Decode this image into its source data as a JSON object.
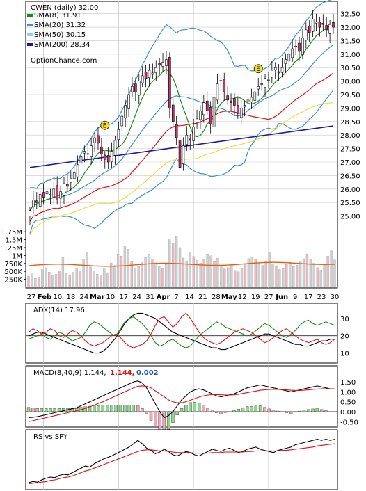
{
  "chart_data": [
    {
      "type": "candlestick",
      "title": "CWEN (daily) 32.00",
      "watermark": "OptionChance.com",
      "ylim": [
        24.5,
        32.8
      ],
      "yticks": [
        "32.50",
        "32.00",
        "31.50",
        "31.00",
        "30.50",
        "30.00",
        "29.50",
        "29.00",
        "28.50",
        "28.00",
        "27.50",
        "27.00",
        "26.50",
        "26.00",
        "25.50",
        "25.00"
      ],
      "legend": [
        {
          "label": "SMA(8) 31.91",
          "color": "#1a8a1a"
        },
        {
          "label": "SMA(20) 31.32",
          "color": "#3a8fd0"
        },
        {
          "label": "SMA(50) 30.15",
          "color": "#8fd0f0"
        },
        {
          "label": "SMA(200) 28.34",
          "color": "#1a1aa0"
        }
      ],
      "close": [
        25.2,
        25.6,
        25.5,
        25.8,
        25.7,
        25.9,
        25.8,
        26.0,
        25.6,
        25.9,
        26.2,
        26.1,
        26.4,
        26.6,
        26.9,
        27.2,
        27.4,
        27.3,
        27.6,
        27.9,
        27.7,
        27.3,
        27.1,
        27.0,
        27.4,
        27.8,
        28.2,
        28.7,
        29.1,
        29.5,
        29.8,
        29.6,
        30.0,
        30.2,
        30.1,
        30.4,
        30.3,
        30.5,
        30.6,
        30.7,
        30.8,
        29.0,
        28.5,
        27.9,
        26.8,
        27.6,
        28.0,
        27.8,
        28.3,
        28.6,
        28.9,
        29.2,
        28.9,
        28.4,
        29.4,
        29.9,
        30.0,
        29.6,
        29.3,
        29.2,
        29.1,
        28.8,
        29.0,
        29.1,
        29.3,
        29.4,
        29.6,
        29.8,
        29.9,
        30.1,
        30.0,
        30.4,
        30.5,
        30.3,
        30.5,
        30.8,
        31.0,
        31.2,
        31.3,
        31.1,
        31.6,
        31.9,
        31.8,
        32.3,
        32.2,
        32.0,
        32.1,
        31.9,
        32.1,
        32.0
      ],
      "sma_labels": [
        "SMA(8)",
        "SMA(20)",
        "SMA(50)",
        "SMA(200)"
      ],
      "sma200": {
        "from": 26.8,
        "to": 28.34
      },
      "signal_markers": [
        {
          "label": "E",
          "index": 22,
          "price": 28.0
        },
        {
          "label": "E",
          "index": 67,
          "price": 30.1
        }
      ]
    },
    {
      "type": "bar",
      "title": "Volume",
      "yticks": [
        "1.75M",
        "1.5M",
        "1.25M",
        "1M",
        "750K",
        "500K",
        "250K"
      ],
      "ylim": [
        0,
        1950000
      ],
      "values": [
        350000,
        420000,
        280000,
        310000,
        560000,
        620000,
        480000,
        390000,
        410000,
        520000,
        950000,
        430000,
        380000,
        470000,
        610000,
        520000,
        880000,
        1100000,
        640000,
        520000,
        410000,
        360000,
        580000,
        460000,
        760000,
        690000,
        1050000,
        980000,
        1300000,
        1200000,
        820000,
        610000,
        660000,
        780000,
        940000,
        1050000,
        880000,
        770000,
        650000,
        610000,
        720000,
        1500000,
        1400000,
        1600000,
        1250000,
        920000,
        830000,
        1100000,
        970000,
        850000,
        760000,
        880000,
        1050000,
        990000,
        810000,
        920000,
        700000,
        580000,
        620000,
        710000,
        530000,
        490000,
        610000,
        720000,
        900000,
        950000,
        880000,
        760000,
        690000,
        820000,
        1100000,
        740000,
        680000,
        560000,
        610000,
        720000,
        780000,
        650000,
        700000,
        820000,
        900000,
        1050000,
        880000,
        760000,
        620000,
        540000,
        700000,
        980000,
        1150000,
        860000
      ],
      "avg_line": {
        "from": 680000,
        "to": 760000
      },
      "x_ticks": [
        "27",
        "Feb",
        "10",
        "18",
        "24",
        "Mar",
        "10",
        "17",
        "24",
        "31",
        "Apr",
        "7",
        "14",
        "21",
        "28",
        "May",
        "12",
        "19",
        "27",
        "Jun",
        "9",
        "17",
        "23",
        "30"
      ]
    },
    {
      "type": "line",
      "title": "ADX(14) 17.96",
      "yticks": [
        "30",
        "20",
        "10"
      ],
      "ylim": [
        5,
        38
      ],
      "series": [
        {
          "name": "ADX",
          "color": "#000000",
          "values": [
            20,
            21,
            22,
            22,
            21,
            20,
            19,
            18,
            17,
            16,
            15,
            14,
            13,
            12,
            11,
            10,
            10,
            11,
            13,
            16,
            19,
            23,
            27,
            30,
            32,
            33,
            33,
            32,
            31,
            30,
            28,
            26,
            24,
            22,
            21,
            20,
            19,
            18,
            17,
            16,
            15,
            14,
            13,
            13,
            12,
            12,
            13,
            14,
            15,
            16,
            17,
            18,
            19,
            20,
            21,
            21,
            20,
            19,
            18,
            17,
            16,
            15,
            15,
            14,
            14,
            15,
            16,
            17,
            17,
            18,
            18
          ]
        },
        {
          "name": "+DI",
          "color": "#1a8a1a",
          "values": [
            18,
            19,
            20,
            21,
            19,
            18,
            20,
            22,
            21,
            19,
            17,
            18,
            19,
            22,
            26,
            28,
            27,
            25,
            23,
            21,
            20,
            24,
            28,
            30,
            31,
            29,
            27,
            24,
            20,
            16,
            14,
            15,
            17,
            18,
            16,
            14,
            13,
            14,
            17,
            20,
            22,
            24,
            26,
            28,
            27,
            25,
            24,
            23,
            22,
            21,
            20,
            21,
            23,
            25,
            27,
            26,
            24,
            22,
            20,
            19,
            21,
            23,
            26,
            28,
            29,
            27,
            26,
            27,
            28,
            27,
            26
          ]
        },
        {
          "name": "-DI",
          "color": "#e01010",
          "values": [
            22,
            24,
            23,
            21,
            22,
            24,
            23,
            20,
            19,
            21,
            23,
            22,
            20,
            17,
            15,
            14,
            15,
            16,
            18,
            20,
            21,
            19,
            16,
            14,
            13,
            14,
            15,
            17,
            21,
            26,
            30,
            31,
            28,
            25,
            27,
            31,
            33,
            30,
            26,
            22,
            19,
            17,
            16,
            15,
            16,
            18,
            20,
            22,
            23,
            24,
            23,
            22,
            20,
            18,
            16,
            17,
            19,
            21,
            23,
            24,
            22,
            20,
            18,
            17,
            16,
            17,
            18,
            16,
            15,
            16,
            18
          ]
        }
      ]
    },
    {
      "type": "line",
      "title": "MACD(8,40,9) 1.144,",
      "values_printed": [
        "1.144,",
        "0.002"
      ],
      "yticks": [
        "1.50",
        "1.00",
        "0.50",
        "0.00",
        "-0.50"
      ],
      "ylim": [
        -0.7,
        1.75
      ],
      "series": [
        {
          "name": "MACD",
          "color": "#000000",
          "values": [
            -0.3,
            -0.28,
            -0.25,
            -0.2,
            -0.15,
            -0.1,
            -0.05,
            0.0,
            0.05,
            0.1,
            0.15,
            0.2,
            0.3,
            0.4,
            0.5,
            0.6,
            0.7,
            0.8,
            0.9,
            1.0,
            1.1,
            1.2,
            1.3,
            1.4,
            1.5,
            1.55,
            1.45,
            1.2,
            0.8,
            0.4,
            0.0,
            -0.3,
            -0.2,
            0.0,
            0.3,
            0.6,
            0.8,
            1.0,
            1.1,
            1.15,
            1.1,
            1.0,
            0.9,
            0.8,
            0.75,
            0.8,
            0.85,
            0.9,
            1.0,
            1.1,
            1.2,
            1.25,
            1.3,
            1.35,
            1.3,
            1.25,
            1.2,
            1.15,
            1.1,
            1.05,
            1.0,
            1.05,
            1.1,
            1.15,
            1.2,
            1.25,
            1.3,
            1.25,
            1.2,
            1.15,
            1.144
          ]
        },
        {
          "name": "Signal",
          "color": "#e01010",
          "values": [
            -0.5,
            -0.45,
            -0.4,
            -0.35,
            -0.3,
            -0.25,
            -0.2,
            -0.15,
            -0.1,
            -0.05,
            0.0,
            0.05,
            0.1,
            0.17,
            0.25,
            0.33,
            0.42,
            0.5,
            0.6,
            0.7,
            0.8,
            0.9,
            1.0,
            1.1,
            1.2,
            1.28,
            1.3,
            1.28,
            1.2,
            1.05,
            0.9,
            0.75,
            0.6,
            0.5,
            0.45,
            0.45,
            0.5,
            0.58,
            0.66,
            0.74,
            0.8,
            0.84,
            0.86,
            0.86,
            0.85,
            0.84,
            0.84,
            0.85,
            0.88,
            0.92,
            0.96,
            1.0,
            1.04,
            1.08,
            1.1,
            1.12,
            1.12,
            1.12,
            1.11,
            1.1,
            1.08,
            1.07,
            1.07,
            1.08,
            1.1,
            1.12,
            1.14,
            1.15,
            1.15,
            1.15,
            1.142
          ]
        }
      ]
    },
    {
      "type": "line",
      "title": "RS vs SPY",
      "series": [
        {
          "name": "RS",
          "color": "#000000",
          "values": [
            10,
            12,
            11,
            15,
            18,
            20,
            19,
            23,
            25,
            24,
            28,
            32,
            36,
            40,
            38,
            44,
            48,
            52,
            55,
            58,
            62,
            66,
            70,
            74,
            80,
            86,
            80,
            72,
            68,
            62,
            65,
            70,
            66,
            60,
            58,
            62,
            66,
            64,
            60,
            58,
            62,
            66,
            70,
            68,
            66,
            70,
            72,
            68,
            64,
            66,
            70,
            72,
            74,
            70,
            68,
            66,
            64,
            68,
            70,
            72,
            74,
            78,
            80,
            82,
            84,
            86,
            88,
            86,
            88,
            86,
            88
          ]
        },
        {
          "name": "RS avg",
          "color": "#e01010",
          "values": [
            8,
            9,
            10,
            11,
            12,
            14,
            15,
            17,
            19,
            20,
            22,
            25,
            28,
            31,
            33,
            36,
            39,
            42,
            45,
            48,
            51,
            54,
            57,
            60,
            63,
            66,
            68,
            69,
            69,
            68,
            67,
            67,
            66,
            65,
            64,
            64,
            64,
            64,
            63,
            63,
            63,
            63,
            64,
            64,
            64,
            65,
            65,
            65,
            65,
            65,
            66,
            66,
            67,
            67,
            67,
            67,
            67,
            67,
            68,
            68,
            69,
            70,
            71,
            72,
            73,
            74,
            76,
            77,
            78,
            79,
            80
          ]
        }
      ]
    }
  ]
}
